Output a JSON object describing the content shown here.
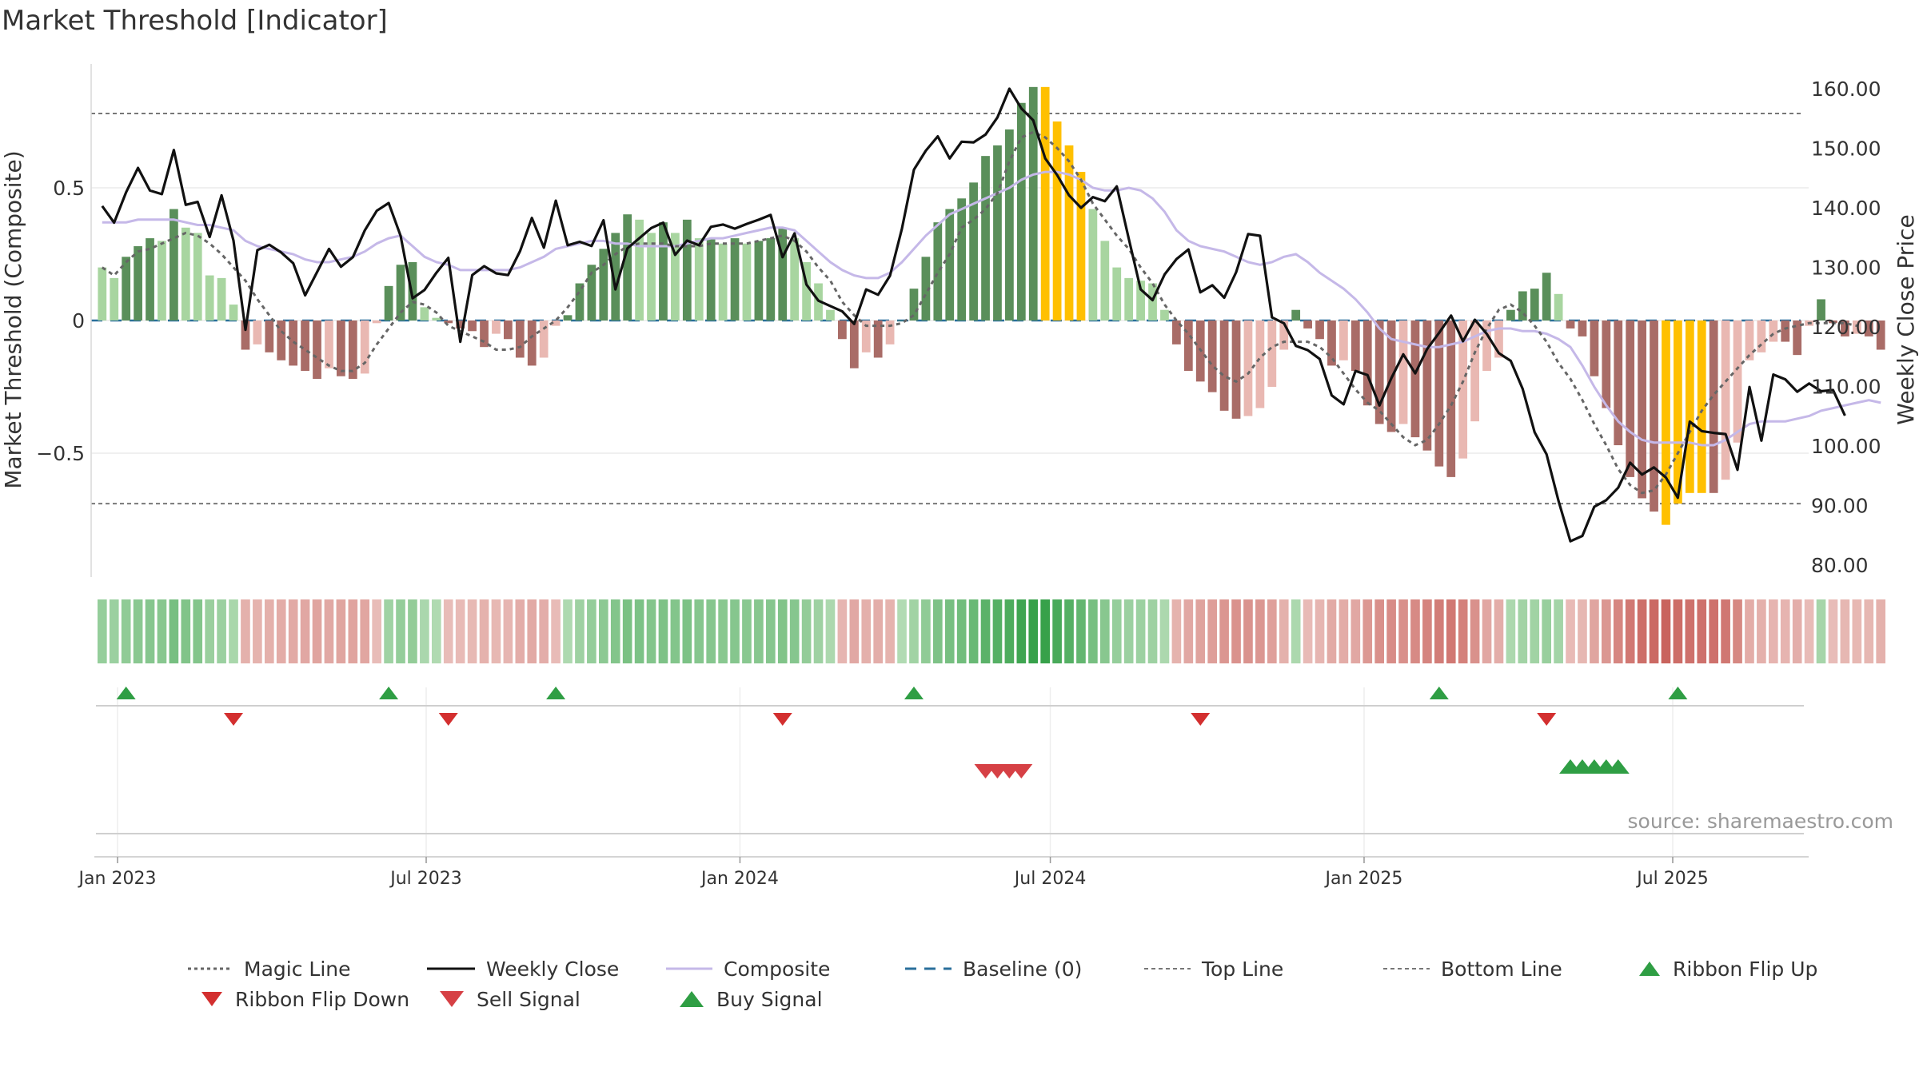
{
  "title": "Market Threshold [Indicator]",
  "source_text": "source: sharemaestro.com",
  "colors": {
    "pos_dark": "#5a8f5a",
    "pos_light": "#a8d5a0",
    "neg_dark": "#a96c67",
    "neg_light": "#e9b8b2",
    "extreme": "#ffc000",
    "weekly_close": "#111111",
    "composite": "#c5b8e8",
    "magic": "#666666",
    "baseline": "#2a6f9b",
    "threshold": "#777777",
    "buy": "#2f9e44",
    "sell": "#d64045",
    "flip_up": "#2f9e44",
    "flip_down": "#d32f2f"
  },
  "legend": {
    "magic_line": "Magic Line",
    "weekly_close": "Weekly Close",
    "composite": "Composite",
    "baseline": "Baseline (0)",
    "top_line": "Top Line",
    "bottom_line": "Bottom Line",
    "ribbon_flip_up": "Ribbon Flip Up",
    "ribbon_flip_down": "Ribbon Flip Down",
    "sell_signal": "Sell Signal",
    "buy_signal": "Buy Signal"
  },
  "chart_data": {
    "type": "bar",
    "title": "Market Threshold [Indicator]",
    "ylabel_left": "Market Threshold (Composite)",
    "ylabel_right": "Weekly Close Price",
    "ylim_left": [
      -0.97,
      0.97
    ],
    "ylim_right": [
      78,
      162
    ],
    "yticks_left": [
      0.5,
      0,
      -0.5
    ],
    "ytick_labels_left": [
      "0.5",
      "0",
      "−0.5"
    ],
    "yticks_right": [
      160,
      150,
      140,
      130,
      120,
      110,
      100,
      90,
      80
    ],
    "ytick_labels_right": [
      "160.00",
      "150.00",
      "140.00",
      "130.00",
      "120.00",
      "110.00",
      "100.00",
      "90.00",
      "80.00"
    ],
    "x_start": "2022-12-23",
    "x_step_days": 7,
    "x_ticks": [
      "2023-01-01",
      "2023-07-01",
      "2024-01-01",
      "2024-07-01",
      "2025-01-01",
      "2025-07-01"
    ],
    "x_tick_labels": [
      "Jan 2023",
      "Jul 2023",
      "Jan 2024",
      "Jul 2024",
      "Jan 2025",
      "Jul 2025"
    ],
    "top_line": 0.78,
    "bottom_line": -0.69,
    "baseline": 0,
    "composite_bars": [
      0.2,
      0.16,
      0.24,
      0.28,
      0.31,
      0.3,
      0.42,
      0.35,
      0.33,
      0.17,
      0.16,
      0.06,
      -0.11,
      -0.09,
      -0.12,
      -0.15,
      -0.17,
      -0.19,
      -0.22,
      -0.18,
      -0.21,
      -0.22,
      -0.2,
      -0.01,
      0.13,
      0.21,
      0.22,
      0.05,
      0.01,
      -0.01,
      -0.03,
      -0.04,
      -0.1,
      -0.05,
      -0.07,
      -0.14,
      -0.17,
      -0.14,
      -0.02,
      0.02,
      0.14,
      0.21,
      0.27,
      0.33,
      0.4,
      0.38,
      0.33,
      0.37,
      0.33,
      0.38,
      0.31,
      0.31,
      0.29,
      0.31,
      0.29,
      0.3,
      0.31,
      0.35,
      0.31,
      0.22,
      0.14,
      0.04,
      -0.07,
      -0.18,
      -0.12,
      -0.14,
      -0.09,
      0,
      0.12,
      0.24,
      0.37,
      0.42,
      0.46,
      0.52,
      0.62,
      0.66,
      0.72,
      0.82,
      0.88,
      0.88,
      0.75,
      0.66,
      0.56,
      0.42,
      0.3,
      0.2,
      0.16,
      0.15,
      0.14,
      0.04,
      -0.09,
      -0.19,
      -0.23,
      -0.27,
      -0.34,
      -0.37,
      -0.36,
      -0.33,
      -0.25,
      -0.11,
      0.04,
      -0.03,
      -0.07,
      -0.17,
      -0.15,
      -0.19,
      -0.32,
      -0.39,
      -0.42,
      -0.39,
      -0.44,
      -0.49,
      -0.55,
      -0.59,
      -0.52,
      -0.38,
      -0.19,
      -0.14,
      0.04,
      0.11,
      0.12,
      0.18,
      0.1,
      -0.03,
      -0.06,
      -0.21,
      -0.33,
      -0.47,
      -0.59,
      -0.67,
      -0.72,
      -0.77,
      -0.69,
      -0.65,
      -0.65,
      -0.65,
      -0.6,
      -0.46,
      -0.15,
      -0.12,
      -0.08,
      -0.08,
      -0.13,
      -0.02,
      0.08,
      -0.01,
      -0.06,
      -0.05,
      -0.06,
      -0.11
    ],
    "weekly_close": [
      140.3,
      137.5,
      142.6,
      146.7,
      142.9,
      142.3,
      149.7,
      140.5,
      141,
      135.1,
      142.1,
      134.5,
      119.5,
      132.9,
      133.8,
      132.5,
      130.7,
      125.3,
      129.2,
      133.1,
      130.1,
      131.7,
      136.2,
      139.5,
      140.8,
      135.3,
      124.8,
      126.2,
      129.1,
      131.6,
      117.5,
      128.7,
      130.2,
      129,
      128.7,
      132.7,
      138.3,
      133.3,
      141.2,
      133.7,
      134.3,
      133.6,
      137.9,
      126.3,
      133.2,
      134.9,
      136.6,
      137.5,
      132.1,
      134.5,
      133.7,
      136.8,
      137.2,
      136.5,
      137.3,
      138,
      138.8,
      131.7,
      135.7,
      127.1,
      124.4,
      123.5,
      122.6,
      120.5,
      126.3,
      125.4,
      128.6,
      136.5,
      146.4,
      149.6,
      152,
      148.3,
      151.1,
      151,
      152.3,
      155.2,
      160,
      156.7,
      154.7,
      148.3,
      145.5,
      142.1,
      140,
      141.8,
      141.1,
      143.6,
      134.8,
      126.3,
      124.5,
      128.8,
      131.4,
      133,
      125.8,
      127,
      124.9,
      129.2,
      135.6,
      135.3,
      121.6,
      120.6,
      116.8,
      116.1,
      114.6,
      108.5,
      107,
      112.6,
      111.9,
      106.8,
      111.4,
      115.4,
      112.2,
      116.3,
      119,
      121.9,
      117.6,
      121.2,
      118.8,
      115.6,
      114.3,
      109.6,
      102.3,
      98.6,
      90.8,
      84,
      84.9,
      89.8,
      90.9,
      93,
      97.2,
      95.2,
      96.4,
      94.7,
      91.3,
      104.1,
      102.5,
      102.2,
      102,
      96,
      109.9,
      100.9,
      112,
      111.2,
      109.1,
      110.5,
      109.2,
      109.4,
      105.1
    ],
    "composite_line": [
      0.37,
      0.37,
      0.37,
      0.38,
      0.38,
      0.38,
      0.38,
      0.37,
      0.36,
      0.36,
      0.35,
      0.34,
      0.3,
      0.28,
      0.27,
      0.26,
      0.25,
      0.23,
      0.22,
      0.22,
      0.23,
      0.24,
      0.26,
      0.29,
      0.31,
      0.32,
      0.28,
      0.24,
      0.22,
      0.21,
      0.19,
      0.19,
      0.19,
      0.19,
      0.19,
      0.2,
      0.22,
      0.24,
      0.27,
      0.28,
      0.29,
      0.3,
      0.3,
      0.29,
      0.29,
      0.28,
      0.28,
      0.28,
      0.28,
      0.29,
      0.3,
      0.31,
      0.31,
      0.32,
      0.33,
      0.34,
      0.35,
      0.35,
      0.34,
      0.3,
      0.26,
      0.22,
      0.19,
      0.17,
      0.16,
      0.16,
      0.18,
      0.22,
      0.27,
      0.32,
      0.36,
      0.4,
      0.42,
      0.44,
      0.46,
      0.48,
      0.5,
      0.53,
      0.55,
      0.56,
      0.56,
      0.55,
      0.53,
      0.5,
      0.49,
      0.49,
      0.5,
      0.49,
      0.46,
      0.41,
      0.34,
      0.3,
      0.28,
      0.27,
      0.26,
      0.24,
      0.22,
      0.21,
      0.22,
      0.24,
      0.25,
      0.22,
      0.18,
      0.15,
      0.12,
      0.08,
      0.03,
      -0.03,
      -0.07,
      -0.08,
      -0.09,
      -0.1,
      -0.1,
      -0.09,
      -0.08,
      -0.06,
      -0.04,
      -0.03,
      -0.03,
      -0.04,
      -0.04,
      -0.05,
      -0.07,
      -0.1,
      -0.17,
      -0.25,
      -0.32,
      -0.38,
      -0.42,
      -0.45,
      -0.46,
      -0.46,
      -0.46,
      -0.46,
      -0.47,
      -0.47,
      -0.45,
      -0.42,
      -0.39,
      -0.38,
      -0.38,
      -0.38,
      -0.37,
      -0.36,
      -0.34,
      -0.33,
      -0.32,
      -0.31,
      -0.3,
      -0.31
    ],
    "magic_line": [
      0.2,
      0.17,
      0.22,
      0.26,
      0.27,
      0.29,
      0.31,
      0.33,
      0.32,
      0.29,
      0.25,
      0.2,
      0.15,
      0.08,
      0.02,
      -0.04,
      -0.08,
      -0.11,
      -0.14,
      -0.17,
      -0.19,
      -0.19,
      -0.16,
      -0.09,
      -0.03,
      0.03,
      0.07,
      0.06,
      0.03,
      -0.02,
      -0.04,
      -0.06,
      -0.08,
      -0.11,
      -0.11,
      -0.1,
      -0.06,
      -0.03,
      0,
      0.05,
      0.11,
      0.18,
      0.21,
      0.25,
      0.28,
      0.29,
      0.29,
      0.29,
      0.28,
      0.28,
      0.28,
      0.29,
      0.29,
      0.29,
      0.29,
      0.3,
      0.31,
      0.32,
      0.3,
      0.26,
      0.2,
      0.15,
      0.07,
      0.02,
      -0.02,
      -0.02,
      -0.02,
      -0.01,
      0.02,
      0.1,
      0.18,
      0.25,
      0.35,
      0.38,
      0.42,
      0.48,
      0.6,
      0.69,
      0.71,
      0.69,
      0.65,
      0.6,
      0.53,
      0.44,
      0.38,
      0.32,
      0.27,
      0.2,
      0.14,
      0.06,
      0,
      -0.05,
      -0.11,
      -0.17,
      -0.21,
      -0.23,
      -0.2,
      -0.14,
      -0.1,
      -0.08,
      -0.08,
      -0.08,
      -0.1,
      -0.14,
      -0.2,
      -0.26,
      -0.31,
      -0.34,
      -0.39,
      -0.44,
      -0.47,
      -0.45,
      -0.39,
      -0.32,
      -0.23,
      -0.12,
      -0.03,
      0.04,
      0.06,
      0.03,
      -0.02,
      -0.08,
      -0.16,
      -0.22,
      -0.3,
      -0.39,
      -0.47,
      -0.56,
      -0.62,
      -0.65,
      -0.64,
      -0.58,
      -0.5,
      -0.42,
      -0.34,
      -0.28,
      -0.23,
      -0.18,
      -0.13,
      -0.09,
      -0.05,
      -0.03,
      -0.02,
      -0.01,
      -0.01,
      -0.01,
      -0.01,
      -0.02
    ],
    "extreme_weeks": [
      79,
      80,
      81,
      82,
      131,
      132,
      133,
      134
    ],
    "ribbon_values": [
      0.2,
      0.16,
      0.24,
      0.28,
      0.31,
      0.3,
      0.42,
      0.35,
      0.33,
      0.17,
      0.16,
      0.06,
      -0.11,
      -0.09,
      -0.12,
      -0.15,
      -0.17,
      -0.19,
      -0.22,
      -0.18,
      -0.21,
      -0.22,
      -0.2,
      -0.01,
      0.13,
      0.21,
      0.22,
      0.05,
      0.01,
      -0.01,
      -0.03,
      -0.04,
      -0.1,
      -0.05,
      -0.07,
      -0.14,
      -0.17,
      -0.14,
      -0.02,
      0.02,
      0.14,
      0.21,
      0.27,
      0.33,
      0.4,
      0.38,
      0.33,
      0.37,
      0.33,
      0.38,
      0.31,
      0.31,
      0.29,
      0.31,
      0.29,
      0.3,
      0.31,
      0.35,
      0.31,
      0.22,
      0.14,
      0.04,
      -0.07,
      -0.18,
      -0.12,
      -0.14,
      -0.09,
      0,
      0.12,
      0.24,
      0.37,
      0.42,
      0.46,
      0.52,
      0.62,
      0.66,
      0.72,
      0.82,
      0.88,
      0.88,
      0.75,
      0.66,
      0.56,
      0.42,
      0.3,
      0.2,
      0.16,
      0.15,
      0.14,
      0.04,
      -0.09,
      -0.19,
      -0.23,
      -0.27,
      -0.34,
      -0.37,
      -0.36,
      -0.33,
      -0.25,
      -0.11,
      0.04,
      -0.03,
      -0.07,
      -0.17,
      -0.15,
      -0.19,
      -0.32,
      -0.39,
      -0.42,
      -0.39,
      -0.44,
      -0.49,
      -0.55,
      -0.59,
      -0.52,
      -0.38,
      -0.19,
      -0.14,
      0.04,
      0.11,
      0.12,
      0.18,
      0.1,
      -0.03,
      -0.06,
      -0.21,
      -0.33,
      -0.47,
      -0.59,
      -0.67,
      -0.72,
      -0.77,
      -0.69,
      -0.65,
      -0.65,
      -0.65,
      -0.6,
      -0.46,
      -0.15,
      -0.12,
      -0.08,
      -0.08,
      -0.13,
      -0.02,
      0.08,
      -0.01,
      -0.06,
      -0.05,
      -0.06,
      -0.11
    ],
    "ribbon_flip_up_weeks": [
      2,
      24,
      38,
      68,
      112,
      132
    ],
    "ribbon_flip_down_weeks": [
      11,
      29,
      57,
      92,
      121
    ],
    "sell_signal_weeks": [
      74,
      75,
      76,
      77
    ],
    "buy_signal_weeks": [
      123,
      124,
      125,
      126,
      127
    ],
    "legend_position": "bottom"
  }
}
